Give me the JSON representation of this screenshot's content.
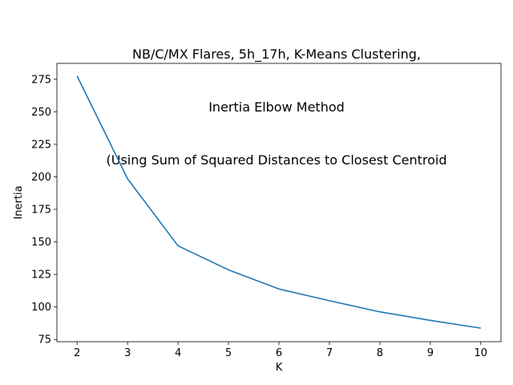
{
  "chart_data": {
    "type": "line",
    "title_lines": [
      "NB/C/MX Flares, 5h_17h, K-Means Clustering,",
      "Inertia Elbow Method",
      "(Using Sum of Squared Distances to Closest Centroid"
    ],
    "xlabel": "K",
    "ylabel": "Inertia",
    "x": [
      2,
      3,
      4,
      5,
      6,
      7,
      8,
      9,
      10
    ],
    "series": [
      {
        "values": [
          277.5,
          198.5,
          147,
          128.5,
          113.8,
          104.8,
          96.2,
          89.7,
          83.7
        ],
        "color": "#1f77b4"
      }
    ],
    "xticks": [
      2,
      3,
      4,
      5,
      6,
      7,
      8,
      9,
      10
    ],
    "yticks": [
      75,
      100,
      125,
      150,
      175,
      200,
      225,
      250,
      275
    ],
    "xlim": [
      1.6,
      10.4
    ],
    "ylim": [
      73.3,
      287.2
    ],
    "grid": false,
    "legend": "none"
  }
}
